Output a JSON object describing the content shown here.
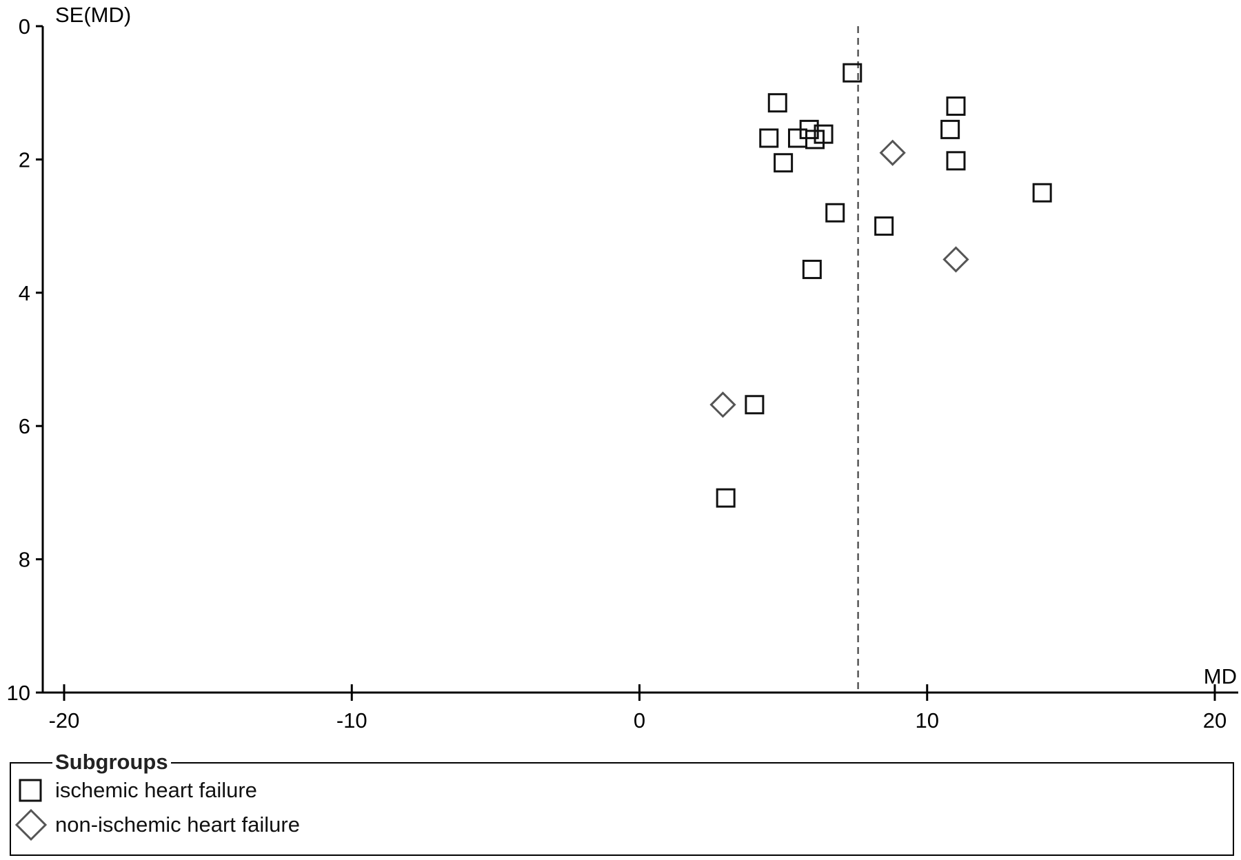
{
  "chart_data": {
    "type": "scatter",
    "title": "",
    "xlabel": "MD",
    "ylabel": "SE(MD)",
    "xlim": [
      -20.8,
      20.8
    ],
    "ylim": [
      0,
      10
    ],
    "y_inverted": true,
    "x_ticks": [
      -20,
      -10,
      0,
      10,
      20
    ],
    "x_tick_labels": [
      "-20",
      "-10",
      "0",
      "10",
      "20"
    ],
    "y_ticks": [
      0,
      2,
      4,
      6,
      8,
      10
    ],
    "y_tick_labels": [
      "0",
      "2",
      "4",
      "6",
      "8",
      "10"
    ],
    "reference_line_x": 7.6,
    "grid": false,
    "legend": {
      "title": "Subgroups",
      "placement": "bottom",
      "entries": [
        {
          "label": "ischemic heart failure",
          "marker": "square"
        },
        {
          "label": "non-ischemic heart failure",
          "marker": "diamond"
        }
      ]
    },
    "series": [
      {
        "name": "ischemic heart failure",
        "marker": "square",
        "color": "#111111",
        "points": [
          {
            "x": 7.4,
            "y": 0.7
          },
          {
            "x": 4.8,
            "y": 1.15
          },
          {
            "x": 11.0,
            "y": 1.2
          },
          {
            "x": 5.9,
            "y": 1.55
          },
          {
            "x": 10.8,
            "y": 1.55
          },
          {
            "x": 6.4,
            "y": 1.62
          },
          {
            "x": 4.5,
            "y": 1.68
          },
          {
            "x": 5.5,
            "y": 1.68
          },
          {
            "x": 6.1,
            "y": 1.7
          },
          {
            "x": 11.0,
            "y": 2.02
          },
          {
            "x": 5.0,
            "y": 2.05
          },
          {
            "x": 14.0,
            "y": 2.5
          },
          {
            "x": 6.8,
            "y": 2.8
          },
          {
            "x": 8.5,
            "y": 3.0
          },
          {
            "x": 6.0,
            "y": 3.65
          },
          {
            "x": 4.0,
            "y": 5.68
          },
          {
            "x": 3.0,
            "y": 7.08
          }
        ]
      },
      {
        "name": "non-ischemic heart failure",
        "marker": "diamond",
        "color": "#555555",
        "points": [
          {
            "x": 8.8,
            "y": 1.9
          },
          {
            "x": 11.0,
            "y": 3.5
          },
          {
            "x": 2.9,
            "y": 5.68
          }
        ]
      }
    ]
  }
}
